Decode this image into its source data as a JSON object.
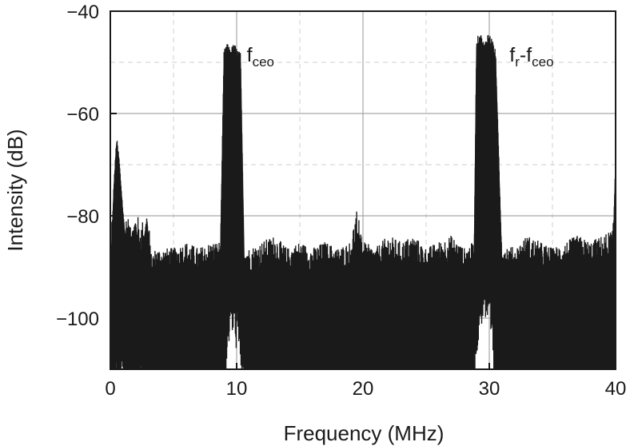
{
  "chart_data": {
    "type": "line",
    "xlabel": "Frequency (MHz)",
    "ylabel": "Intensity (dB)",
    "xlim": [
      0,
      40
    ],
    "ylim": [
      -110,
      -40
    ],
    "xticks": [
      0,
      10,
      20,
      30,
      40
    ],
    "xtick_labels": [
      "0",
      "10",
      "20",
      "30",
      "40"
    ],
    "yticks": [
      -40,
      -60,
      -80,
      -100
    ],
    "ytick_labels": [
      "−40",
      "−60",
      "−80",
      "−100"
    ],
    "grid": true,
    "legend": "none",
    "series": [
      {
        "color": "#1a1a1a",
        "x": [
          0.0,
          0.3,
          0.5,
          0.7,
          1.0,
          1.3,
          1.6,
          2.0,
          2.3,
          2.6,
          2.9,
          3.2,
          3.6,
          4.0,
          5.0,
          6.0,
          7.0,
          8.0,
          8.7,
          9.0,
          9.2,
          9.5,
          9.8,
          10.0,
          10.3,
          10.6,
          11.0,
          12.0,
          13.0,
          14.0,
          15.0,
          16.0,
          17.0,
          18.0,
          19.0,
          19.6,
          20.0,
          21.0,
          22.0,
          23.0,
          24.0,
          25.0,
          26.0,
          27.0,
          28.0,
          28.8,
          29.0,
          29.3,
          29.6,
          29.9,
          30.2,
          30.5,
          31.0,
          32.0,
          33.0,
          34.0,
          35.0,
          36.0,
          37.0,
          38.0,
          39.0,
          39.8,
          40.0
        ],
        "y_upper": [
          -93,
          -74,
          -66,
          -70,
          -80,
          -87,
          -85,
          -82,
          -88,
          -86,
          -81,
          -92,
          -91,
          -91,
          -91,
          -90,
          -91,
          -90,
          -90,
          -50,
          -48,
          -49,
          -48,
          -49,
          -50,
          -90,
          -91,
          -90,
          -89,
          -91,
          -90,
          -91,
          -90,
          -91,
          -90,
          -84,
          -90,
          -91,
          -89,
          -90,
          -89,
          -91,
          -90,
          -89,
          -91,
          -90,
          -47,
          -46,
          -48,
          -46,
          -47,
          -50,
          -90,
          -91,
          -89,
          -90,
          -91,
          -90,
          -89,
          -90,
          -89,
          -88,
          -70
        ],
        "y_lower": [
          -110,
          -108,
          -106,
          -107,
          -108,
          -108,
          -110,
          -108,
          -109,
          -108,
          -109,
          -110,
          -110,
          -110,
          -110,
          -110,
          -110,
          -110,
          -110,
          -110,
          -99,
          -94,
          -95,
          -97,
          -100,
          -110,
          -110,
          -110,
          -110,
          -110,
          -110,
          -110,
          -110,
          -110,
          -110,
          -110,
          -110,
          -110,
          -110,
          -110,
          -110,
          -110,
          -110,
          -110,
          -110,
          -110,
          -98,
          -93,
          -91,
          -94,
          -97,
          -110,
          -110,
          -110,
          -110,
          -110,
          -110,
          -110,
          -110,
          -110,
          -110,
          -110,
          -110
        ]
      }
    ],
    "annotations": [
      {
        "base": "f",
        "sub": "ceo",
        "x": 10.8,
        "y": -48
      },
      {
        "base": "f",
        "sub": "r",
        "mid": "-f",
        "sub2": "ceo",
        "x": 31.6,
        "y": -48
      }
    ]
  }
}
